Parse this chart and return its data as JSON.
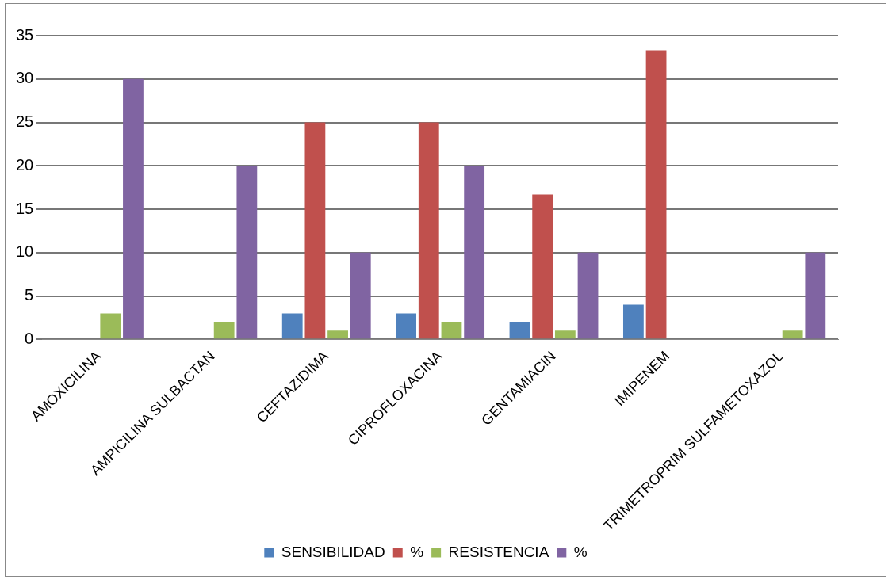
{
  "chart_data": {
    "type": "bar",
    "categories": [
      "AMOXICILINA",
      "AMPICILINA SULBACTAN",
      "CEFTAZIDIMA",
      "CIPROFLOXACINA",
      "GENTAMIACIN",
      "IMIPENEM",
      "TRIMETROPRIM SULFAMETOXAZOL"
    ],
    "series": [
      {
        "name": "SENSIBILIDAD",
        "color": "#4f81bd",
        "values": [
          0,
          0,
          3,
          3,
          2,
          4,
          0
        ]
      },
      {
        "name": "%",
        "color": "#c0504d",
        "values": [
          0,
          0,
          25,
          25,
          16.7,
          33.3,
          0
        ]
      },
      {
        "name": "RESISTENCIA",
        "color": "#9bbb59",
        "values": [
          3,
          2,
          1,
          2,
          1,
          0,
          1
        ]
      },
      {
        "name": "%",
        "color": "#8064a2",
        "values": [
          30,
          20,
          10,
          20,
          10,
          0,
          10
        ]
      }
    ],
    "ylim": [
      0,
      35
    ],
    "yticks": [
      0,
      5,
      10,
      15,
      20,
      25,
      30,
      35
    ],
    "grid": "y",
    "legend": "bottom"
  }
}
